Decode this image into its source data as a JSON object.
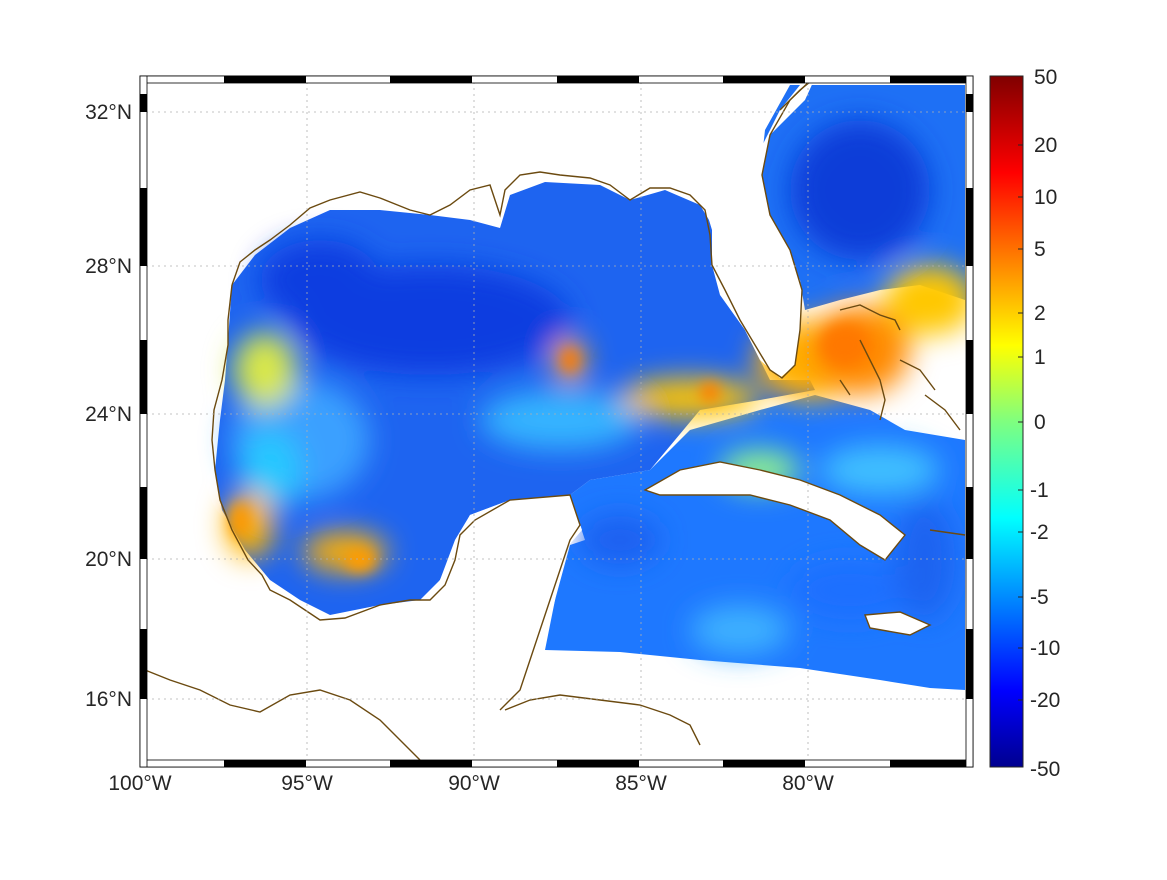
{
  "map": {
    "projection": "mercator",
    "extent": {
      "lon_min": -100,
      "lon_max": -75.2,
      "lat_min": 14.3,
      "lat_max": 33
    },
    "grid_lines": "dotted",
    "frame": "black-white checkered border",
    "lat_labels": [
      "32°N",
      "28°N",
      "24°N",
      "20°N",
      "16°N"
    ],
    "lat_values": [
      32,
      28,
      24,
      20,
      16
    ],
    "lon_labels": [
      "100°W",
      "95°W",
      "90°W",
      "85°W",
      "80°W"
    ],
    "lon_values": [
      -100,
      -95,
      -90,
      -85,
      -80
    ],
    "coast_color": "#6b4a10",
    "no_data_color": "#ffffff",
    "regions": [
      "Gulf of Mexico",
      "Caribbean Sea",
      "western Atlantic",
      "Florida",
      "Yucatan",
      "Cuba",
      "Bahamas",
      "Jamaica"
    ]
  },
  "colorbar": {
    "colormap": "jet",
    "scale": "nonlinear",
    "tick_labels": [
      "50",
      "20",
      "10",
      "5",
      "2",
      "1",
      "0",
      "-1",
      "-2",
      "-5",
      "-10",
      "-20",
      "-50"
    ],
    "tick_values": [
      50,
      20,
      10,
      5,
      2,
      1,
      0,
      -1,
      -2,
      -5,
      -10,
      -20,
      -50
    ]
  },
  "field_features": [
    {
      "region": "Gulf of Mexico interior",
      "level": "low",
      "color": "#0a46e6"
    },
    {
      "region": "Florida Straits to Bahamas",
      "level": "high",
      "color": "#ffc000"
    },
    {
      "region": "Bahamas",
      "level": "highest",
      "color": "#ff8a00"
    },
    {
      "region": "western Mexican coast",
      "level": "high",
      "color": "#ffaa00"
    },
    {
      "region": "Caribbean",
      "level": "low",
      "color": "#1e78ff"
    },
    {
      "region": "Atlantic offshore Carolina",
      "level": "lowest",
      "color": "#0a3cd8"
    }
  ]
}
